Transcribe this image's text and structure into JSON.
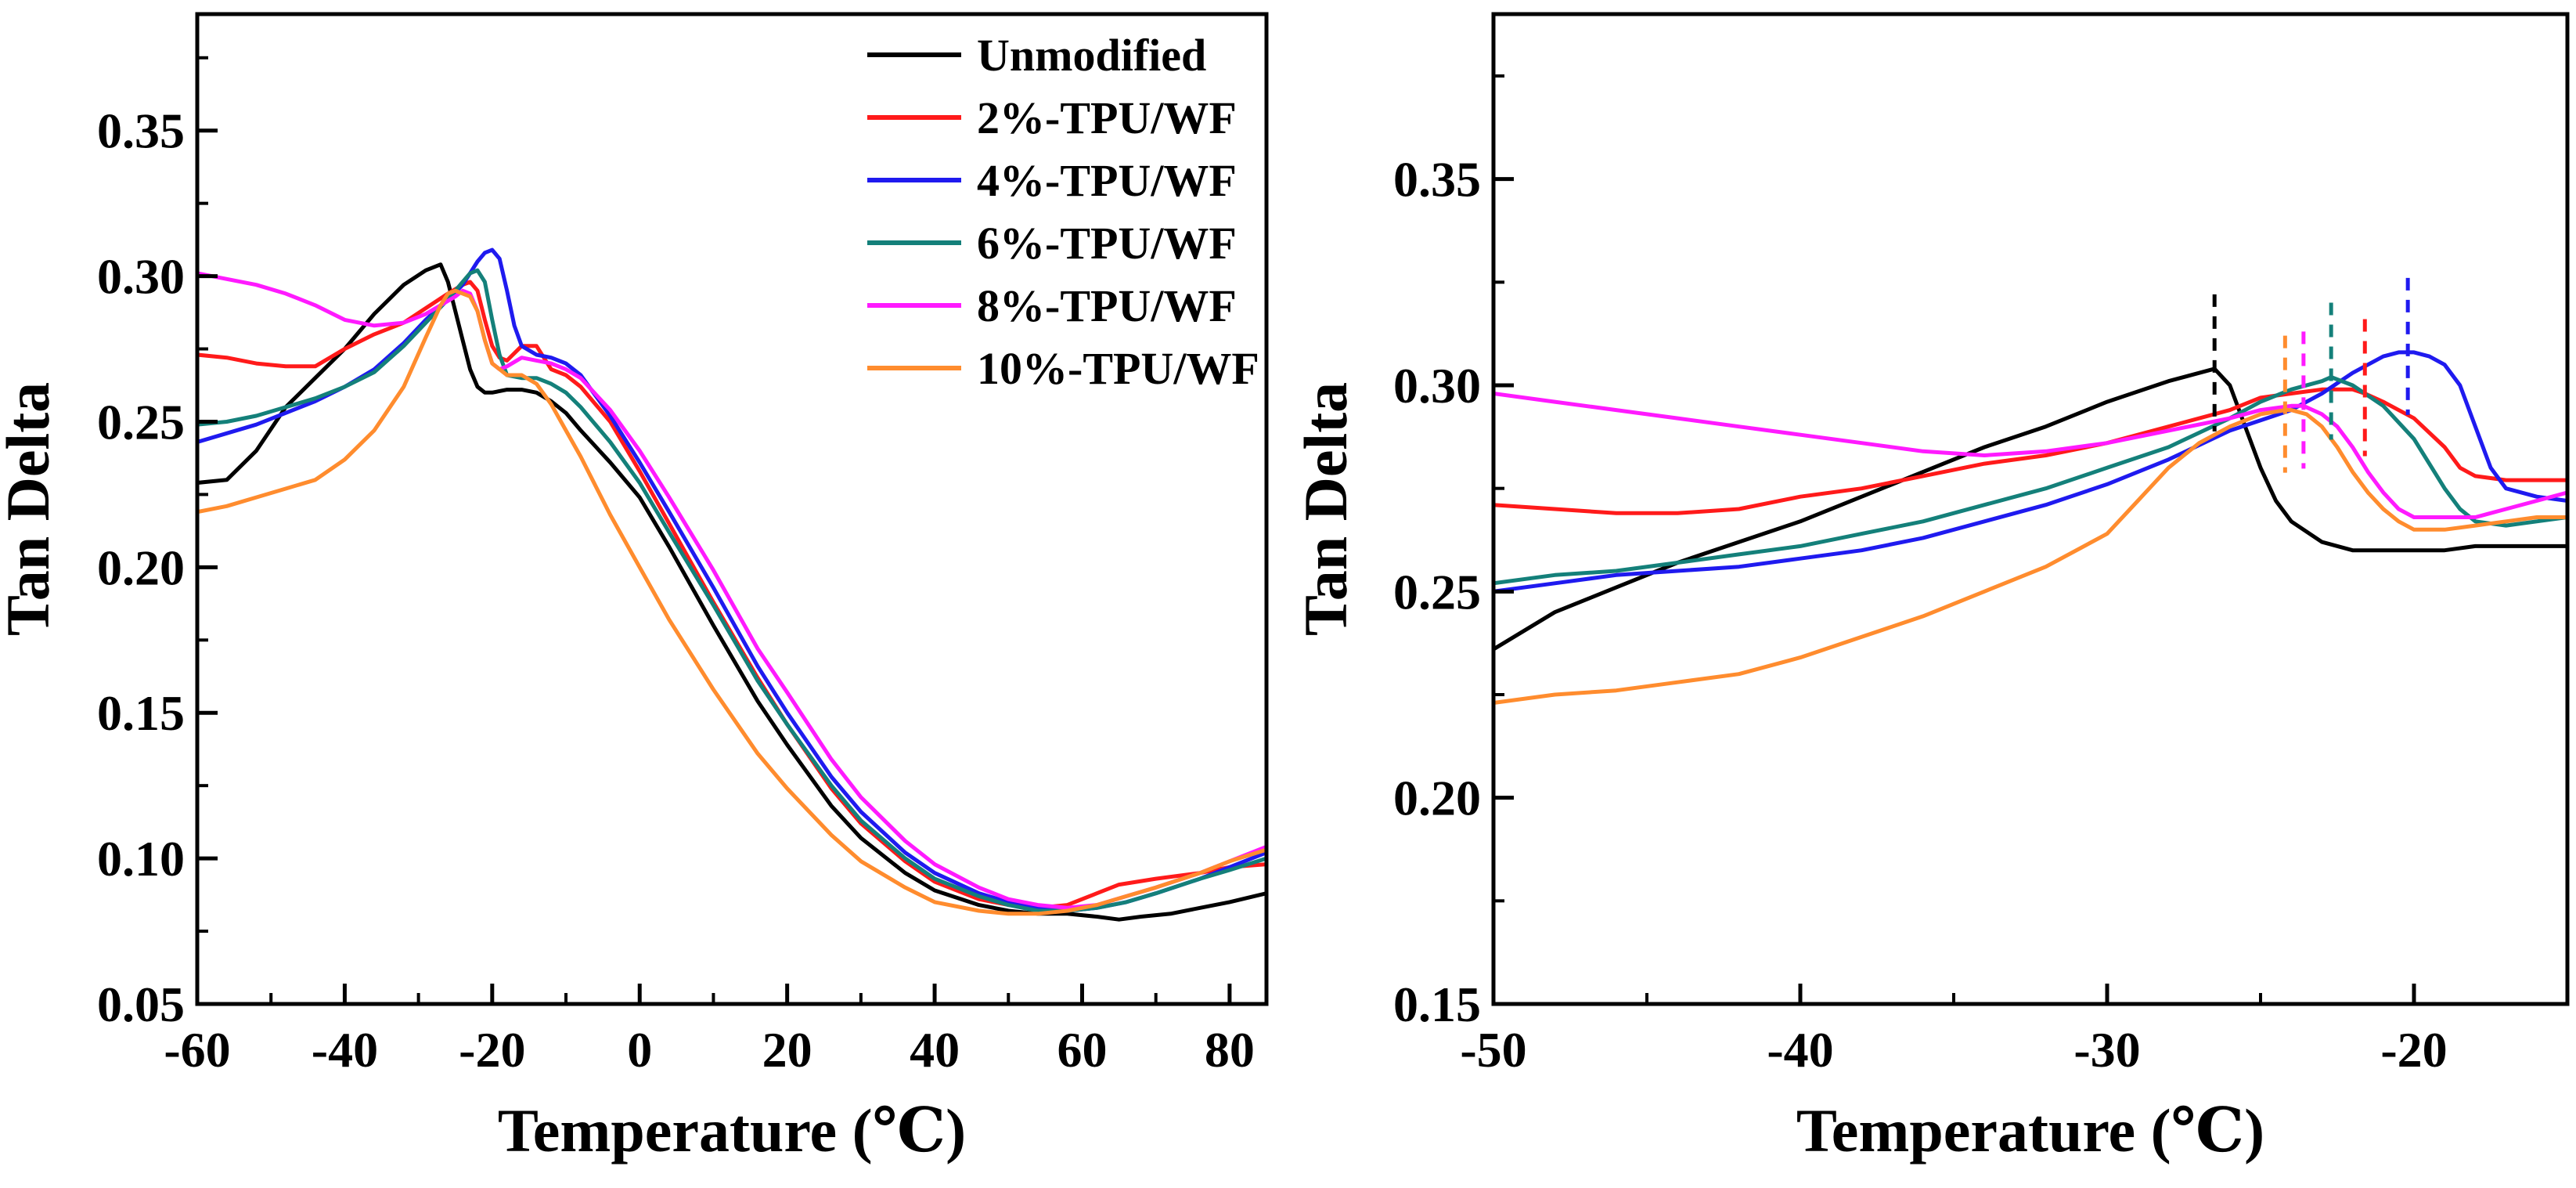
{
  "chart_data": [
    {
      "type": "line",
      "xlabel": "Temperature (℃)",
      "ylabel": "Tan Delta",
      "xlim": [
        -60,
        85
      ],
      "ylim": [
        0.05,
        0.39
      ],
      "x_ticks": [
        -60,
        -40,
        -20,
        0,
        20,
        40,
        60,
        80
      ],
      "x_tick_labels": [
        "-60",
        "-40",
        "-20",
        "0",
        "20",
        "40",
        "60",
        "80"
      ],
      "y_ticks": [
        0.05,
        0.1,
        0.15,
        0.2,
        0.25,
        0.3,
        0.35
      ],
      "y_tick_labels": [
        "0.05",
        "0.10",
        "0.15",
        "0.20",
        "0.25",
        "0.30",
        "0.35"
      ],
      "legend": {
        "location": "top-right",
        "entries": [
          "Unmodified",
          "2%-TPU/WF",
          "4%-TPU/WF",
          "6%-TPU/WF",
          "8%-TPU/WF",
          "10%-TPU/WF"
        ]
      },
      "series": [
        {
          "name": "Unmodified",
          "color": "#000000",
          "x": [
            -60,
            -56,
            -52,
            -48,
            -44,
            -40,
            -36,
            -32,
            -29,
            -27,
            -26,
            -25,
            -24,
            -23,
            -22,
            -21,
            -20,
            -18,
            -16,
            -14,
            -12,
            -10,
            -8,
            -4,
            0,
            4,
            10,
            16,
            20,
            26,
            30,
            36,
            40,
            46,
            50,
            54,
            58,
            62,
            65,
            68,
            72,
            76,
            80,
            85
          ],
          "y": [
            0.229,
            0.23,
            0.24,
            0.255,
            0.265,
            0.275,
            0.287,
            0.297,
            0.302,
            0.304,
            0.298,
            0.288,
            0.278,
            0.268,
            0.262,
            0.26,
            0.26,
            0.261,
            0.261,
            0.26,
            0.257,
            0.253,
            0.247,
            0.236,
            0.224,
            0.207,
            0.18,
            0.154,
            0.139,
            0.118,
            0.107,
            0.095,
            0.089,
            0.084,
            0.082,
            0.081,
            0.081,
            0.08,
            0.079,
            0.08,
            0.081,
            0.083,
            0.085,
            0.088
          ]
        },
        {
          "name": "2%-TPU/WF",
          "color": "#ff1a1a",
          "x": [
            -60,
            -56,
            -52,
            -48,
            -44,
            -40,
            -36,
            -32,
            -29,
            -26,
            -24,
            -23,
            -22,
            -21,
            -20,
            -19,
            -18,
            -16,
            -14,
            -12,
            -10,
            -8,
            -4,
            0,
            4,
            10,
            16,
            20,
            26,
            30,
            36,
            40,
            46,
            50,
            54,
            58,
            62,
            65,
            70,
            76,
            80,
            85
          ],
          "y": [
            0.273,
            0.272,
            0.27,
            0.269,
            0.269,
            0.275,
            0.28,
            0.284,
            0.289,
            0.294,
            0.297,
            0.298,
            0.295,
            0.285,
            0.276,
            0.272,
            0.271,
            0.276,
            0.276,
            0.268,
            0.266,
            0.262,
            0.25,
            0.233,
            0.215,
            0.188,
            0.162,
            0.146,
            0.124,
            0.112,
            0.099,
            0.092,
            0.086,
            0.084,
            0.083,
            0.084,
            0.088,
            0.091,
            0.093,
            0.095,
            0.097,
            0.098
          ]
        },
        {
          "name": "4%-TPU/WF",
          "color": "#1f1aef",
          "x": [
            -60,
            -56,
            -52,
            -48,
            -44,
            -40,
            -36,
            -32,
            -29,
            -26,
            -24,
            -23,
            -22,
            -21,
            -20,
            -19,
            -18,
            -17,
            -16,
            -14,
            -12,
            -10,
            -8,
            -4,
            0,
            4,
            10,
            16,
            20,
            26,
            30,
            36,
            40,
            46,
            50,
            54,
            58,
            62,
            66,
            70,
            76,
            80,
            85
          ],
          "y": [
            0.243,
            0.246,
            0.249,
            0.253,
            0.257,
            0.262,
            0.268,
            0.277,
            0.285,
            0.292,
            0.297,
            0.301,
            0.305,
            0.308,
            0.309,
            0.306,
            0.295,
            0.283,
            0.276,
            0.273,
            0.272,
            0.27,
            0.266,
            0.252,
            0.236,
            0.219,
            0.193,
            0.166,
            0.15,
            0.128,
            0.116,
            0.102,
            0.095,
            0.088,
            0.085,
            0.083,
            0.082,
            0.083,
            0.085,
            0.088,
            0.093,
            0.097,
            0.102
          ]
        },
        {
          "name": "6%-TPU/WF",
          "color": "#14807a",
          "x": [
            -60,
            -56,
            -52,
            -48,
            -44,
            -40,
            -36,
            -32,
            -29,
            -26,
            -24,
            -23,
            -22,
            -21,
            -20,
            -19,
            -18,
            -16,
            -14,
            -12,
            -10,
            -8,
            -4,
            0,
            4,
            10,
            16,
            20,
            26,
            30,
            36,
            40,
            46,
            50,
            54,
            58,
            62,
            66,
            70,
            76,
            80,
            85
          ],
          "y": [
            0.249,
            0.25,
            0.252,
            0.255,
            0.258,
            0.262,
            0.267,
            0.276,
            0.284,
            0.292,
            0.298,
            0.301,
            0.302,
            0.298,
            0.285,
            0.273,
            0.266,
            0.265,
            0.265,
            0.263,
            0.26,
            0.255,
            0.243,
            0.229,
            0.212,
            0.187,
            0.161,
            0.146,
            0.125,
            0.113,
            0.1,
            0.093,
            0.087,
            0.084,
            0.082,
            0.082,
            0.083,
            0.085,
            0.088,
            0.093,
            0.096,
            0.1
          ]
        },
        {
          "name": "8%-TPU/WF",
          "color": "#ff1aff",
          "x": [
            -60,
            -56,
            -52,
            -48,
            -44,
            -40,
            -36,
            -32,
            -29,
            -27,
            -25,
            -24,
            -23,
            -22,
            -21,
            -20,
            -19,
            -18,
            -16,
            -14,
            -12,
            -10,
            -8,
            -4,
            0,
            4,
            10,
            16,
            20,
            26,
            30,
            36,
            40,
            46,
            50,
            54,
            58,
            62,
            66,
            70,
            76,
            80,
            85
          ],
          "y": [
            0.301,
            0.299,
            0.297,
            0.294,
            0.29,
            0.285,
            0.283,
            0.284,
            0.287,
            0.29,
            0.293,
            0.295,
            0.294,
            0.288,
            0.278,
            0.27,
            0.268,
            0.269,
            0.272,
            0.271,
            0.27,
            0.268,
            0.265,
            0.254,
            0.24,
            0.224,
            0.199,
            0.172,
            0.157,
            0.134,
            0.121,
            0.106,
            0.098,
            0.09,
            0.086,
            0.084,
            0.083,
            0.084,
            0.087,
            0.09,
            0.095,
            0.099,
            0.104
          ]
        },
        {
          "name": "10%-TPU/WF",
          "color": "#ff8c2e",
          "x": [
            -60,
            -56,
            -52,
            -48,
            -44,
            -40,
            -36,
            -32,
            -29,
            -27,
            -26,
            -25,
            -24,
            -23,
            -22,
            -21,
            -20,
            -18,
            -16,
            -14,
            -12,
            -10,
            -8,
            -4,
            0,
            4,
            10,
            16,
            20,
            26,
            30,
            36,
            40,
            46,
            50,
            54,
            58,
            62,
            66,
            70,
            76,
            80,
            85
          ],
          "y": [
            0.219,
            0.221,
            0.224,
            0.227,
            0.23,
            0.237,
            0.247,
            0.262,
            0.279,
            0.29,
            0.294,
            0.295,
            0.294,
            0.293,
            0.288,
            0.278,
            0.27,
            0.266,
            0.266,
            0.263,
            0.256,
            0.247,
            0.238,
            0.218,
            0.2,
            0.182,
            0.158,
            0.136,
            0.124,
            0.108,
            0.099,
            0.09,
            0.085,
            0.082,
            0.081,
            0.081,
            0.082,
            0.084,
            0.087,
            0.09,
            0.095,
            0.099,
            0.103
          ]
        }
      ]
    },
    {
      "type": "line",
      "xlabel": "Temperature (℃)",
      "ylabel": "Tan Delta",
      "xlim": [
        -50,
        -15
      ],
      "ylim": [
        0.15,
        0.39
      ],
      "x_ticks": [
        -50,
        -40,
        -30,
        -20
      ],
      "x_tick_labels": [
        "-50",
        "-40",
        "-30",
        "-20"
      ],
      "y_ticks": [
        0.15,
        0.2,
        0.25,
        0.3,
        0.35
      ],
      "y_tick_labels": [
        "0.15",
        "0.20",
        "0.25",
        "0.30",
        "0.35"
      ],
      "peak_markers": [
        {
          "series": "Unmodified",
          "x": -26.5,
          "color": "#000000"
        },
        {
          "series": "10%-TPU/WF",
          "x": -24.2,
          "color": "#ff8c2e"
        },
        {
          "series": "8%-TPU/WF",
          "x": -23.6,
          "color": "#ff1aff"
        },
        {
          "series": "6%-TPU/WF",
          "x": -22.7,
          "color": "#14807a"
        },
        {
          "series": "2%-TPU/WF",
          "x": -21.6,
          "color": "#ff1a1a"
        },
        {
          "series": "4%-TPU/WF",
          "x": -20.2,
          "color": "#1f1aef"
        }
      ],
      "series": [
        {
          "name": "Unmodified",
          "color": "#000000",
          "x": [
            -50,
            -48,
            -46,
            -44,
            -42,
            -40,
            -38,
            -36,
            -34,
            -32,
            -30,
            -28,
            -27,
            -26.5,
            -26,
            -25.5,
            -25,
            -24.5,
            -24,
            -23,
            -22,
            -21,
            -20,
            -19,
            -18,
            -17,
            -16,
            -15
          ],
          "y": [
            0.236,
            0.245,
            0.251,
            0.257,
            0.262,
            0.267,
            0.273,
            0.279,
            0.285,
            0.29,
            0.296,
            0.301,
            0.303,
            0.304,
            0.3,
            0.29,
            0.28,
            0.272,
            0.267,
            0.262,
            0.26,
            0.26,
            0.26,
            0.26,
            0.261,
            0.261,
            0.261,
            0.261
          ]
        },
        {
          "name": "2%-TPU/WF",
          "color": "#ff1a1a",
          "x": [
            -50,
            -48,
            -46,
            -44,
            -42,
            -40,
            -38,
            -36,
            -34,
            -32,
            -30,
            -28,
            -26,
            -25,
            -24,
            -23,
            -22,
            -21.6,
            -21,
            -20,
            -19,
            -18.5,
            -18,
            -17,
            -16,
            -15
          ],
          "y": [
            0.271,
            0.27,
            0.269,
            0.269,
            0.27,
            0.273,
            0.275,
            0.278,
            0.281,
            0.283,
            0.286,
            0.29,
            0.294,
            0.297,
            0.298,
            0.299,
            0.299,
            0.298,
            0.296,
            0.292,
            0.285,
            0.28,
            0.278,
            0.277,
            0.277,
            0.277
          ]
        },
        {
          "name": "4%-TPU/WF",
          "color": "#1f1aef",
          "x": [
            -50,
            -48,
            -46,
            -44,
            -42,
            -40,
            -38,
            -36,
            -34,
            -32,
            -30,
            -28,
            -26,
            -24,
            -23,
            -22,
            -21,
            -20.5,
            -20,
            -19.5,
            -19,
            -18.5,
            -18,
            -17.5,
            -17,
            -16,
            -15
          ],
          "y": [
            0.25,
            0.252,
            0.254,
            0.255,
            0.256,
            0.258,
            0.26,
            0.263,
            0.267,
            0.271,
            0.276,
            0.282,
            0.289,
            0.294,
            0.298,
            0.303,
            0.307,
            0.308,
            0.308,
            0.307,
            0.305,
            0.3,
            0.29,
            0.28,
            0.275,
            0.273,
            0.272
          ]
        },
        {
          "name": "6%-TPU/WF",
          "color": "#14807a",
          "x": [
            -50,
            -48,
            -46,
            -44,
            -42,
            -40,
            -38,
            -36,
            -34,
            -32,
            -30,
            -28,
            -26,
            -25,
            -24,
            -23,
            -22.7,
            -22,
            -21,
            -20,
            -19,
            -18.5,
            -18,
            -17,
            -16,
            -15
          ],
          "y": [
            0.252,
            0.254,
            0.255,
            0.257,
            0.259,
            0.261,
            0.264,
            0.267,
            0.271,
            0.275,
            0.28,
            0.285,
            0.292,
            0.296,
            0.299,
            0.301,
            0.302,
            0.3,
            0.295,
            0.287,
            0.275,
            0.27,
            0.267,
            0.266,
            0.267,
            0.268
          ]
        },
        {
          "name": "8%-TPU/WF",
          "color": "#ff1aff",
          "x": [
            -50,
            -48,
            -46,
            -44,
            -42,
            -40,
            -38,
            -36,
            -34,
            -32,
            -30,
            -28,
            -26,
            -25,
            -24,
            -23.6,
            -23,
            -22.5,
            -22,
            -21.5,
            -21,
            -20.5,
            -20,
            -19,
            -18,
            -17,
            -16,
            -15
          ],
          "y": [
            0.298,
            0.296,
            0.294,
            0.292,
            0.29,
            0.288,
            0.286,
            0.284,
            0.283,
            0.284,
            0.286,
            0.289,
            0.292,
            0.294,
            0.295,
            0.295,
            0.293,
            0.29,
            0.285,
            0.279,
            0.274,
            0.27,
            0.268,
            0.268,
            0.268,
            0.27,
            0.272,
            0.274
          ]
        },
        {
          "name": "10%-TPU/WF",
          "color": "#ff8c2e",
          "x": [
            -50,
            -48,
            -46,
            -44,
            -42,
            -40,
            -38,
            -36,
            -34,
            -32,
            -30,
            -29,
            -28,
            -27,
            -26,
            -25,
            -24.2,
            -24,
            -23.5,
            -23,
            -22.5,
            -22,
            -21.5,
            -21,
            -20.5,
            -20,
            -19,
            -18,
            -17,
            -16,
            -15
          ],
          "y": [
            0.223,
            0.225,
            0.226,
            0.228,
            0.23,
            0.234,
            0.239,
            0.244,
            0.25,
            0.256,
            0.264,
            0.272,
            0.28,
            0.286,
            0.29,
            0.293,
            0.294,
            0.294,
            0.293,
            0.29,
            0.285,
            0.279,
            0.274,
            0.27,
            0.267,
            0.265,
            0.265,
            0.266,
            0.267,
            0.268,
            0.268
          ]
        }
      ]
    }
  ]
}
